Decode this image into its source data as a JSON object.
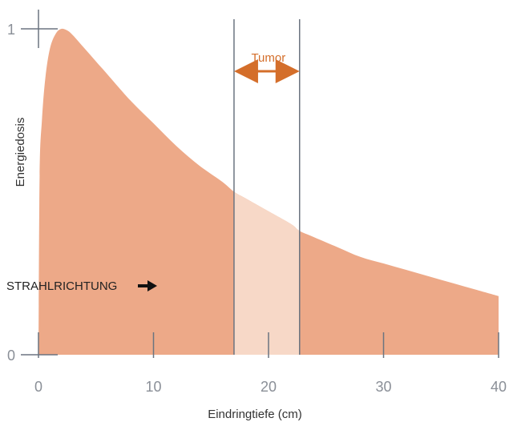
{
  "chart_data": {
    "type": "area",
    "title": "",
    "xlabel": "Eindringtiefe (cm)",
    "ylabel": "Energiedosis",
    "xlim": [
      0,
      40
    ],
    "ylim": [
      0,
      1
    ],
    "x_ticks": [
      "0",
      "10",
      "20",
      "30",
      "40"
    ],
    "y_ticks": [
      "0",
      "1"
    ],
    "x": [
      0,
      0.1,
      0.3,
      0.6,
      1,
      1.5,
      2,
      2.5,
      3,
      4,
      5,
      6,
      8,
      10,
      12,
      14,
      16,
      17,
      18,
      20,
      22,
      22.7,
      24,
      26,
      28,
      30,
      32,
      34,
      36,
      38,
      40
    ],
    "y": [
      0.0,
      0.55,
      0.72,
      0.85,
      0.94,
      0.985,
      1.0,
      0.995,
      0.98,
      0.94,
      0.9,
      0.86,
      0.78,
      0.71,
      0.64,
      0.58,
      0.53,
      0.5,
      0.48,
      0.44,
      0.4,
      0.38,
      0.36,
      0.33,
      0.3,
      0.28,
      0.26,
      0.24,
      0.22,
      0.2,
      0.18
    ],
    "highlight": {
      "label": "Tumor",
      "from": 17,
      "to": 22.7
    },
    "annotation": "STRAHLRICHTUNG",
    "colors": {
      "fill": "#eda988",
      "highlight_fill": "#f7d8c7",
      "tumor_accent": "#d46e2a",
      "lines": "#6b7480",
      "tick_text": "#8a8f97"
    }
  }
}
